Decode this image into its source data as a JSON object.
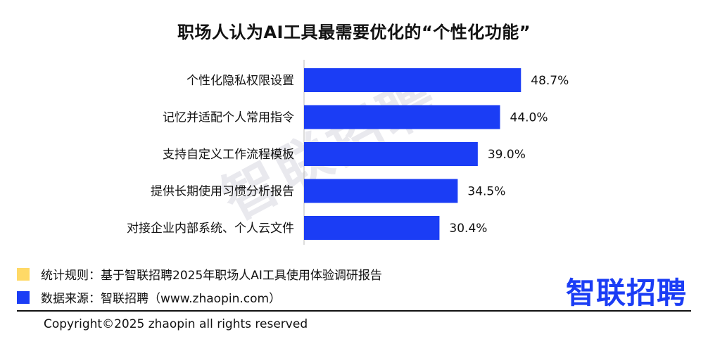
{
  "chart_data": {
    "type": "bar",
    "orientation": "horizontal",
    "title": "职场人认为AI工具最需要优化的“个性化功能”",
    "categories": [
      "个性化隐私权限设置",
      "记忆并适配个人常用指令",
      "支持自定义工作流程模板",
      "提供长期使用习惯分析报告",
      "对接企业内部系统、个人云文件"
    ],
    "values": [
      48.7,
      44.0,
      39.0,
      34.5,
      30.4
    ],
    "value_labels": [
      "48.7%",
      "44.0%",
      "39.0%",
      "34.5%",
      "30.4%"
    ],
    "unit": "%",
    "xlim": [
      0,
      50
    ],
    "bar_color": "#1b3df5",
    "grid": false
  },
  "watermark": "智联招聘",
  "footnotes": [
    {
      "text": "统计规则：基于智联招聘2025年职场人AI工具使用体验调研报告",
      "color": "#ffd966"
    },
    {
      "text": "数据来源：智联招聘（www.zhaopin.com）",
      "color": "#1b3df5"
    }
  ],
  "logo": "智联招聘",
  "copyright": "Copyright©2025 zhaopin all rights reserved"
}
